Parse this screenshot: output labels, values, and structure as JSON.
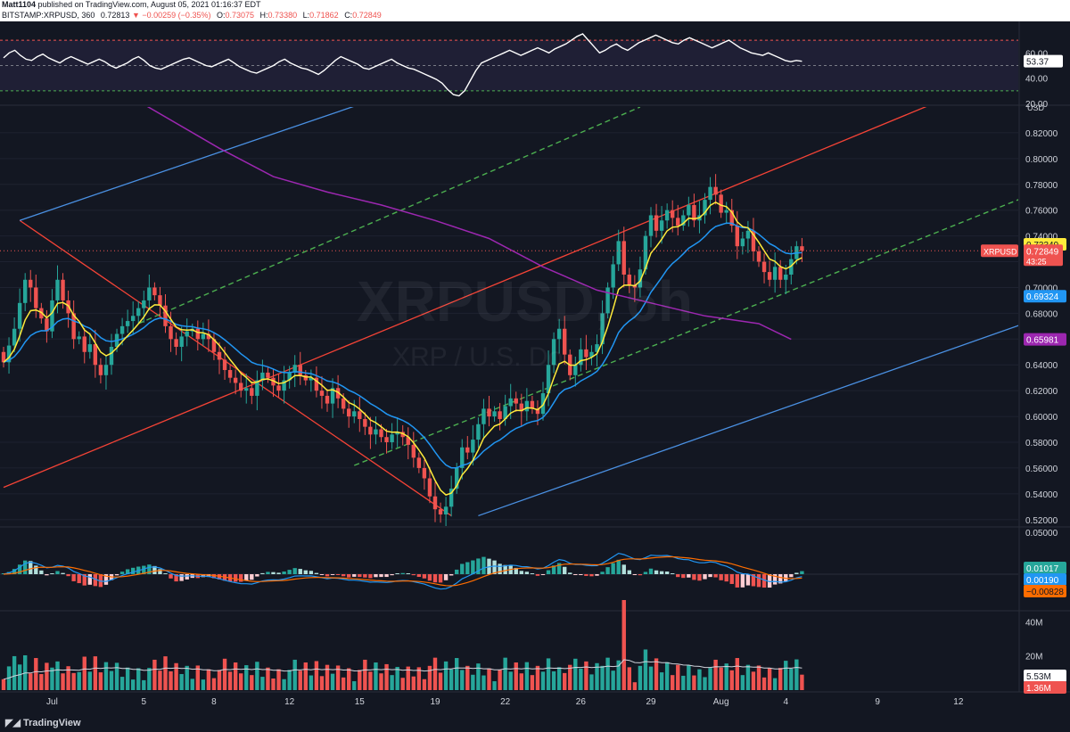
{
  "header": {
    "author": "Matt1104",
    "published_text": "published on TradingView.com, August 05, 2021 01:16:37 EDT",
    "symbol": "BITSTAMP:XRPUSD, 360",
    "last": "0.72813",
    "change": "−0.00259 (−0.35%)",
    "open_label": "O:",
    "open": "0.73075",
    "high_label": "H:",
    "high": "0.73380",
    "low_label": "L:",
    "low": "0.71862",
    "close_label": "C:",
    "close": "0.72849"
  },
  "watermark": {
    "symbol": "XRPUSD, 6h",
    "name": "XRP / U.S. Do..."
  },
  "footer": {
    "logo": "TradingView"
  },
  "colors": {
    "background": "#131722",
    "up": "#26a69a",
    "down": "#ef5350",
    "ma_yellow": "#ffeb3b",
    "ma_blue": "#2196f3",
    "ma_purple": "#9c27b0",
    "channel_red": "#f44336",
    "channel_blue": "#4a90e2",
    "channel_green": "#4caf50"
  },
  "chart_data": {
    "type": "candlestick",
    "symbol": "BITSTAMP:XRPUSD",
    "timeframe": "360",
    "x_tick_labels": [
      "Jul",
      "5",
      "8",
      "12",
      "15",
      "19",
      "22",
      "26",
      "29",
      "Aug",
      "4",
      "9",
      "12"
    ],
    "price_axis": {
      "currency_label": "USD",
      "tick_labels": [
        "0.82000",
        "0.80000",
        "0.78000",
        "0.76000",
        "0.74000",
        "0.72000",
        "0.70000",
        "0.68000",
        "0.66000",
        "0.64000",
        "0.62000",
        "0.60000",
        "0.58000",
        "0.56000",
        "0.54000",
        "0.52000"
      ],
      "ylim": [
        0.515,
        0.84
      ]
    },
    "price_badges": [
      {
        "name": "ma-yellow",
        "value": "0.73349",
        "color": "#ffeb3b",
        "text": "#131722"
      },
      {
        "name": "xrpusd-last",
        "value": "0.72849",
        "label": "XRPUSD",
        "timer": "43:25",
        "color": "#ef5350",
        "text": "#ffffff"
      },
      {
        "name": "ma-blue",
        "value": "0.69324",
        "color": "#2196f3",
        "text": "#ffffff"
      },
      {
        "name": "ma-purple",
        "value": "0.65981",
        "color": "#9c27b0",
        "text": "#ffffff"
      }
    ],
    "close_series": [
      0.642,
      0.655,
      0.668,
      0.688,
      0.706,
      0.7,
      0.684,
      0.676,
      0.666,
      0.69,
      0.706,
      0.69,
      0.68,
      0.66,
      0.662,
      0.65,
      0.656,
      0.64,
      0.632,
      0.64,
      0.654,
      0.664,
      0.67,
      0.674,
      0.678,
      0.684,
      0.69,
      0.7,
      0.694,
      0.686,
      0.67,
      0.66,
      0.654,
      0.662,
      0.666,
      0.668,
      0.66,
      0.664,
      0.66,
      0.65,
      0.644,
      0.636,
      0.63,
      0.626,
      0.62,
      0.622,
      0.616,
      0.628,
      0.634,
      0.63,
      0.624,
      0.62,
      0.628,
      0.634,
      0.64,
      0.632,
      0.628,
      0.63,
      0.62,
      0.616,
      0.61,
      0.622,
      0.614,
      0.606,
      0.6,
      0.604,
      0.598,
      0.592,
      0.586,
      0.59,
      0.584,
      0.58,
      0.586,
      0.588,
      0.584,
      0.578,
      0.568,
      0.56,
      0.552,
      0.538,
      0.528,
      0.524,
      0.53,
      0.544,
      0.56,
      0.576,
      0.572,
      0.582,
      0.594,
      0.606,
      0.6,
      0.604,
      0.598,
      0.608,
      0.614,
      0.61,
      0.604,
      0.612,
      0.606,
      0.602,
      0.618,
      0.64,
      0.66,
      0.668,
      0.648,
      0.632,
      0.64,
      0.652,
      0.646,
      0.65,
      0.656,
      0.68,
      0.7,
      0.718,
      0.736,
      0.71,
      0.702,
      0.7,
      0.714,
      0.74,
      0.756,
      0.744,
      0.752,
      0.76,
      0.754,
      0.748,
      0.756,
      0.764,
      0.752,
      0.756,
      0.768,
      0.778,
      0.772,
      0.758,
      0.76,
      0.748,
      0.732,
      0.738,
      0.744,
      0.728,
      0.72,
      0.712,
      0.706,
      0.716,
      0.706,
      0.71,
      0.722,
      0.732,
      0.72849
    ],
    "channels": [
      {
        "name": "red-upper",
        "color": "#f44336",
        "style": "solid",
        "from": [
          0,
          0.545
        ],
        "to": [
          172,
          0.842
        ]
      },
      {
        "name": "red-descending",
        "color": "#f44336",
        "style": "solid",
        "from": [
          3,
          0.752
        ],
        "to": [
          83,
          0.523
        ]
      },
      {
        "name": "blue-upper",
        "color": "#4a90e2",
        "style": "solid",
        "from": [
          3,
          0.752
        ],
        "to": [
          66,
          0.842
        ]
      },
      {
        "name": "blue-lower",
        "color": "#4a90e2",
        "style": "solid",
        "from": [
          88,
          0.523
        ],
        "to": [
          200,
          0.688
        ]
      },
      {
        "name": "green-lower",
        "color": "#4caf50",
        "style": "dashed",
        "from": [
          65,
          0.562
        ],
        "to": [
          200,
          0.788
        ]
      },
      {
        "name": "green-upper",
        "color": "#4caf50",
        "style": "dashed",
        "from": [
          25,
          0.672
        ],
        "to": [
          118,
          0.84
        ]
      }
    ],
    "rsi": {
      "levels": [
        70,
        50,
        30
      ],
      "tick_labels": [
        "60.00",
        "40.00",
        "20.00"
      ],
      "last": "53.37",
      "values": [
        56,
        60,
        62,
        58,
        55,
        54,
        57,
        59,
        56,
        54,
        52,
        55,
        57,
        55,
        53,
        51,
        53,
        55,
        53,
        50,
        48,
        50,
        52,
        55,
        57,
        54,
        50,
        48,
        47,
        49,
        51,
        53,
        55,
        56,
        54,
        52,
        50,
        49,
        51,
        53,
        55,
        52,
        49,
        47,
        45,
        44,
        46,
        48,
        50,
        53,
        55,
        52,
        50,
        48,
        47,
        45,
        43,
        46,
        50,
        54,
        57,
        55,
        53,
        51,
        48,
        47,
        49,
        51,
        53,
        55,
        52,
        50,
        48,
        47,
        45,
        43,
        41,
        39,
        36,
        31,
        27,
        26,
        30,
        38,
        46,
        52,
        54,
        56,
        58,
        60,
        62,
        60,
        58,
        60,
        62,
        64,
        62,
        60,
        63,
        65,
        67,
        70,
        73,
        75,
        70,
        65,
        60,
        62,
        65,
        67,
        64,
        62,
        65,
        68,
        70,
        72,
        74,
        72,
        70,
        68,
        67,
        70,
        72,
        70,
        68,
        66,
        64,
        66,
        68,
        70,
        67,
        64,
        62,
        60,
        59,
        58,
        60,
        58,
        56,
        54,
        53,
        54,
        53.37
      ]
    },
    "macd": {
      "tick_labels": [
        "0.05000"
      ],
      "badges": [
        {
          "name": "macd-hist",
          "value": "0.01017",
          "color": "#26a69a",
          "text": "#ffffff"
        },
        {
          "name": "macd-line",
          "value": "0.00190",
          "color": "#2196f3",
          "text": "#ffffff"
        },
        {
          "name": "macd-signal",
          "value": "−0.00828",
          "color": "#ff6d00",
          "text": "#131722"
        }
      ]
    },
    "volume": {
      "tick_labels": [
        "40M",
        "20M"
      ],
      "badges": [
        {
          "name": "volume-ma",
          "value": "5.53M",
          "color": "#ffffff",
          "text": "#131722"
        },
        {
          "name": "volume-last",
          "value": "1.36M",
          "color": "#ef5350",
          "text": "#ffffff"
        }
      ]
    }
  }
}
